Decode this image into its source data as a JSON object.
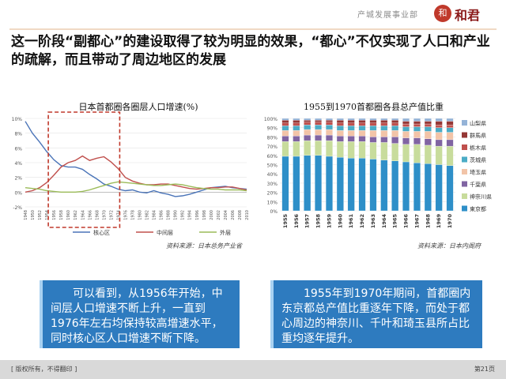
{
  "header": {
    "department": "产城发展事业部",
    "logo_mark": "和",
    "brand": "和君"
  },
  "headline": "这一阶段“副都心”的建设取得了较为明显的效果，“都心”不仅实现了人口和产业的疏解，而且带动了周边地区的发展",
  "chart_data": [
    {
      "type": "line",
      "title": "日本首都圈各圈层人口增速(%)",
      "x": [
        1948,
        1950,
        1952,
        1954,
        1956,
        1958,
        1960,
        1962,
        1964,
        1966,
        1968,
        1970,
        1972,
        1974,
        1976,
        1978,
        1980,
        1982,
        1984,
        1986,
        1988,
        1990,
        1992,
        1994,
        1996,
        1998,
        2000,
        2002,
        2004,
        2006,
        2008,
        2010
      ],
      "ylim": [
        -2,
        10
      ],
      "yticks": [
        "-2%",
        "0%",
        "2%",
        "4%",
        "6%",
        "8%",
        "10%"
      ],
      "series": [
        {
          "name": "核心区",
          "color": "#4a74b8",
          "values": [
            9.6,
            8,
            6.8,
            5.5,
            4.4,
            3.6,
            3.4,
            3.4,
            3.1,
            2.4,
            1.8,
            1.1,
            0.8,
            0.4,
            0.2,
            0.3,
            0,
            -0.1,
            0.2,
            -0.1,
            -0.3,
            -0.6,
            -0.5,
            -0.3,
            0,
            0.3,
            0.6,
            0.7,
            0.8,
            0.6,
            0.5,
            0.4
          ]
        },
        {
          "name": "中间层",
          "color": "#c0504d",
          "values": [
            0,
            0.2,
            0.6,
            1.3,
            2.3,
            3.4,
            4,
            4.3,
            4.9,
            4.3,
            4.6,
            4.8,
            4.1,
            3.2,
            2,
            1.5,
            1.2,
            1,
            1,
            1.1,
            1.1,
            0.9,
            0.7,
            0.5,
            0.4,
            0.5,
            0.6,
            0.6,
            0.7,
            0.7,
            0.5,
            0.3
          ]
        },
        {
          "name": "外层",
          "color": "#9bbb59",
          "values": [
            0.6,
            0.5,
            0.4,
            0.2,
            0.1,
            0,
            0,
            0,
            0.1,
            0.3,
            0.6,
            0.9,
            1.2,
            1.4,
            1.3,
            1.2,
            1.1,
            1,
            0.9,
            0.9,
            1,
            1.1,
            1,
            0.8,
            0.6,
            0.5,
            0.4,
            0.4,
            0.3,
            0.3,
            0.3,
            0.2
          ]
        }
      ],
      "source": "资料来源：日本总务产业省"
    },
    {
      "type": "bar",
      "stacked": true,
      "title": "1955到1970首都圈各县总产值比重",
      "categories": [
        "1955",
        "1956",
        "1957",
        "1958",
        "1959",
        "1960",
        "1961",
        "1962",
        "1963",
        "1964",
        "1965",
        "1966",
        "1967",
        "1968",
        "1969",
        "1970"
      ],
      "ylim": [
        0,
        100
      ],
      "yticks": [
        "0%",
        "10%",
        "20%",
        "30%",
        "40%",
        "50%",
        "60%",
        "70%",
        "80%",
        "90%",
        "100%"
      ],
      "series": [
        {
          "name": "東京都",
          "color": "#2e8fc8",
          "values": [
            59,
            59,
            60,
            60,
            59,
            58,
            57,
            57,
            56,
            55,
            54,
            53,
            52,
            51,
            50,
            49
          ]
        },
        {
          "name": "神奈川県",
          "color": "#c8dc9c",
          "values": [
            16,
            16,
            16,
            16,
            17,
            17,
            18,
            18,
            18,
            19,
            19,
            19,
            20,
            20,
            20,
            21
          ]
        },
        {
          "name": "千葉県",
          "color": "#8064a2",
          "values": [
            6,
            6,
            6,
            6,
            6,
            6,
            6,
            6,
            6,
            6,
            7,
            7,
            7,
            7,
            7,
            7
          ]
        },
        {
          "name": "埼玉県",
          "color": "#f2c4a8",
          "values": [
            6,
            6,
            6,
            6,
            6,
            6,
            6,
            6,
            7,
            7,
            7,
            7,
            7,
            8,
            8,
            8
          ]
        },
        {
          "name": "茨城県",
          "color": "#4bacc6",
          "values": [
            5,
            5,
            5,
            5,
            5,
            5,
            5,
            5,
            5,
            5,
            5,
            5,
            5,
            5,
            5,
            5
          ]
        },
        {
          "name": "栃木県",
          "color": "#c0504d",
          "values": [
            3,
            3,
            3,
            3,
            3,
            3,
            3,
            3,
            3,
            3,
            3,
            3,
            3,
            3,
            3,
            3
          ]
        },
        {
          "name": "群馬県",
          "color": "#953735",
          "values": [
            3,
            3,
            2,
            2,
            2,
            3,
            3,
            3,
            3,
            3,
            3,
            3,
            3,
            3,
            4,
            4
          ]
        },
        {
          "name": "山梨県",
          "color": "#95b3d7",
          "values": [
            2,
            2,
            2,
            2,
            2,
            2,
            2,
            2,
            2,
            2,
            2,
            3,
            3,
            3,
            3,
            3
          ]
        }
      ],
      "source": "资料来源：日本内阁府"
    }
  ],
  "callouts": {
    "left": "可以看到，从1956年开始，中间层人口增速不断上升，一直到1976年左右均保持较高增速水平，同时核心区人口增速不断下降。",
    "right": "1955年到1970年期间，首都圈内东京都总产值比重逐年下降，而处于都心周边的神奈川、千叶和琦玉县所占比重均逐年提升。"
  },
  "footer": {
    "copyright": "[ 版权所有，不得翻印 ]",
    "page": "第21页"
  }
}
